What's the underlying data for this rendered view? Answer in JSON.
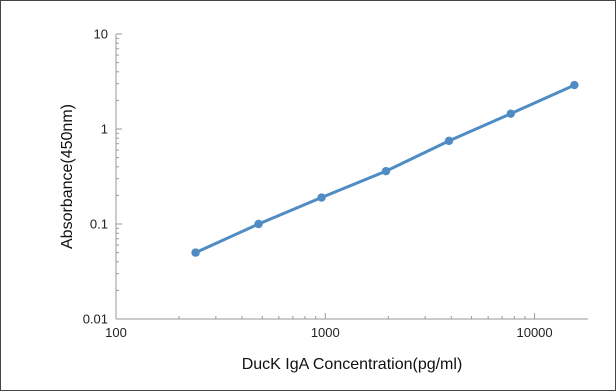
{
  "chart_data": {
    "type": "line",
    "title": "",
    "xlabel": "DucK IgA Concentration(pg/ml)",
    "ylabel": "Absorbance(450nm)",
    "x_scale": "log",
    "y_scale": "log",
    "xlim": [
      100,
      18000
    ],
    "ylim": [
      0.01,
      10
    ],
    "x_ticks": [
      100,
      1000,
      10000
    ],
    "x_tick_labels": [
      "100",
      "1000",
      "10000"
    ],
    "y_ticks": [
      0.01,
      0.1,
      1,
      10
    ],
    "y_tick_labels": [
      "0.01",
      "0.1",
      "1",
      "10"
    ],
    "grid": false,
    "legend": "none",
    "series": [
      {
        "color": "#4f8cc4",
        "x": [
          240,
          480,
          960,
          1950,
          3900,
          7700,
          15500
        ],
        "y": [
          0.05,
          0.1,
          0.19,
          0.36,
          0.75,
          1.45,
          2.9
        ]
      }
    ]
  }
}
